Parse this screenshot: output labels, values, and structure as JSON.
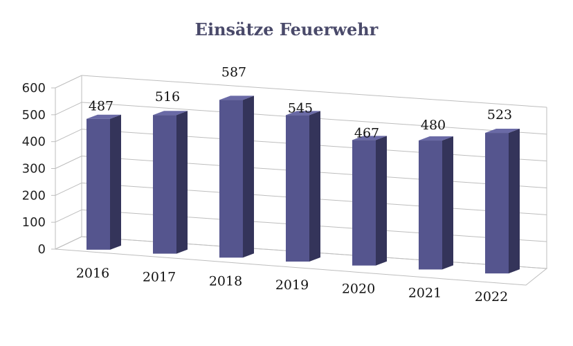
{
  "chart_data": {
    "type": "bar",
    "title": "Einsätze Feuerwehr",
    "categories": [
      "2016",
      "2017",
      "2018",
      "2019",
      "2020",
      "2021",
      "2022"
    ],
    "values": [
      487,
      516,
      587,
      545,
      467,
      480,
      523
    ],
    "ylim": [
      0,
      600
    ],
    "yticks": [
      "0",
      "100",
      "200",
      "300",
      "400",
      "500",
      "600"
    ],
    "grid": true,
    "legend": "none",
    "colors": {
      "bar_front": "#55558e",
      "bar_side": "#34345a",
      "bar_top": "#6a6aa6"
    }
  }
}
